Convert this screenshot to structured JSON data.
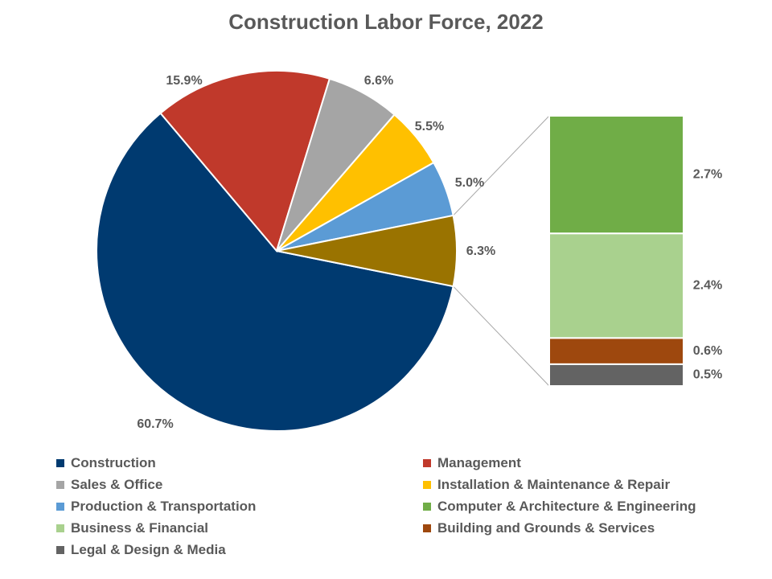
{
  "chart_data": {
    "type": "pie",
    "variant": "bar-of-pie",
    "title": "Construction Labor Force, 2022",
    "slices": [
      {
        "name": "Construction",
        "value": 60.7,
        "label": "60.7%",
        "color": "#003A70"
      },
      {
        "name": "Management",
        "value": 15.9,
        "label": "15.9%",
        "color": "#C0392B"
      },
      {
        "name": "Sales & Office",
        "value": 6.6,
        "label": "6.6%",
        "color": "#A5A5A5"
      },
      {
        "name": "Installation & Maintenance & Repair",
        "value": 5.5,
        "label": "5.5%",
        "color": "#FFC000"
      },
      {
        "name": "Production & Transportation",
        "value": 5.0,
        "label": "5.0%",
        "color": "#5B9BD5"
      }
    ],
    "other": {
      "value": 6.3,
      "label": "6.3%",
      "color": "#9A7300"
    },
    "bar_segments": [
      {
        "name": "Computer & Architecture & Engineering",
        "value": 2.7,
        "label": "2.7%",
        "color": "#70AD47"
      },
      {
        "name": "Business & Financial",
        "value": 2.4,
        "label": "2.4%",
        "color": "#A9D18E"
      },
      {
        "name": "Building and Grounds & Services",
        "value": 0.6,
        "label": "0.6%",
        "color": "#9E480E"
      },
      {
        "name": "Legal & Design & Media",
        "value": 0.5,
        "label": "0.5%",
        "color": "#636363"
      }
    ],
    "legend": {
      "placement": "bottom",
      "items": [
        {
          "name": "Construction",
          "color": "#003A70"
        },
        {
          "name": "Management",
          "color": "#C0392B"
        },
        {
          "name": "Sales & Office",
          "color": "#A5A5A5"
        },
        {
          "name": "Installation & Maintenance & Repair",
          "color": "#FFC000"
        },
        {
          "name": "Production & Transportation",
          "color": "#5B9BD5"
        },
        {
          "name": "Computer & Architecture & Engineering",
          "color": "#70AD47"
        },
        {
          "name": "Business & Financial",
          "color": "#A9D18E"
        },
        {
          "name": "Building and Grounds & Services",
          "color": "#9E480E"
        },
        {
          "name": "Legal & Design & Media",
          "color": "#636363"
        }
      ]
    }
  }
}
